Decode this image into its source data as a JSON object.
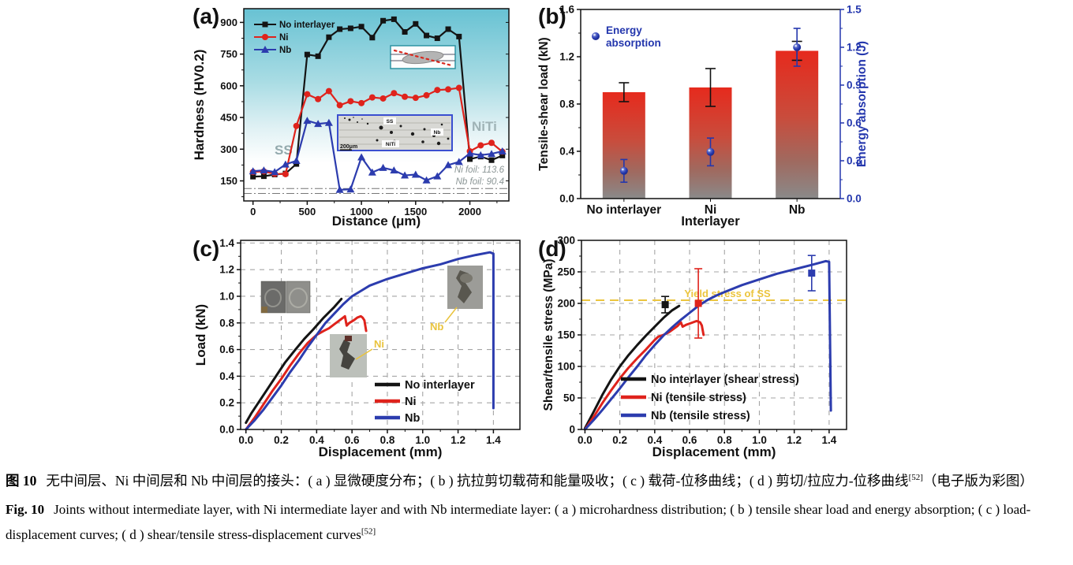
{
  "caption": {
    "zh": {
      "label": "图 10",
      "text": "无中间层、Ni 中间层和 Nb 中间层的接头：( a ) 显微硬度分布；( b ) 抗拉剪切载荷和能量吸收；( c ) 载荷-位移曲线；( d ) 剪切/拉应力-位移曲线",
      "sup": "[52]",
      "suffix": "（电子版为彩图）"
    },
    "en": {
      "label": "Fig. 10",
      "text": "Joints without intermediate layer, with Ni intermediate layer and with Nb intermediate layer: ( a ) microhardness distribution; ( b ) tensile shear load and energy absorption; ( c ) load-displacement curves; ( d ) shear/tensile stress-displacement curves",
      "sup": "[52]"
    }
  },
  "chart_data": [
    {
      "id": "a",
      "type": "line",
      "panel_label": "(a)",
      "xlabel": "Distance (μm)",
      "ylabel": "Hardness (HV0.2)",
      "xlim": [
        -85,
        2360
      ],
      "ylim": [
        55,
        965
      ],
      "xticks": [
        0,
        500,
        1000,
        1500,
        2000
      ],
      "yticks": [
        150,
        300,
        450,
        600,
        750,
        900
      ],
      "background_gradient": [
        "#68c2d3",
        "#a9dce4",
        "#e0f1f4",
        "#ffffff"
      ],
      "x_um": [
        0,
        100,
        200,
        300,
        400,
        500,
        600,
        700,
        800,
        900,
        1000,
        1100,
        1200,
        1300,
        1400,
        1500,
        1600,
        1700,
        1800,
        1900,
        2000,
        2100,
        2200,
        2300
      ],
      "series": [
        {
          "name": "No interlayer",
          "color": "#141414",
          "marker": "square",
          "values": [
            170,
            172,
            180,
            185,
            230,
            748,
            740,
            830,
            868,
            872,
            880,
            828,
            908,
            915,
            855,
            893,
            838,
            825,
            868,
            833,
            253,
            265,
            248,
            270
          ]
        },
        {
          "name": "Ni",
          "color": "#df231c",
          "marker": "circle",
          "values": [
            192,
            195,
            183,
            182,
            410,
            560,
            537,
            575,
            508,
            527,
            518,
            545,
            540,
            565,
            548,
            543,
            555,
            580,
            583,
            590,
            290,
            318,
            330,
            288
          ]
        },
        {
          "name": "Nb",
          "color": "#2c3cae",
          "marker": "triangle",
          "values": [
            196,
            200,
            192,
            228,
            245,
            435,
            420,
            425,
            108,
            110,
            262,
            190,
            212,
            200,
            176,
            180,
            153,
            172,
            225,
            240,
            280,
            272,
            278,
            290
          ]
        }
      ],
      "region_labels": [
        {
          "text": "SS"
        },
        {
          "text": "NiTi"
        }
      ],
      "ref_lines": [
        {
          "label": "Ni foil: 113.6",
          "value": 113.6
        },
        {
          "label": "Nb foil: 90.4",
          "value": 90.4
        }
      ],
      "insets": [
        {
          "kind": "weld-schematic"
        },
        {
          "kind": "micrograph",
          "labels": [
            "SS",
            "Nb",
            "NiTi",
            "200μm"
          ]
        }
      ]
    },
    {
      "id": "b",
      "type": "bar",
      "panel_label": "(b)",
      "categories": [
        "No interlayer",
        "Ni",
        "Nb"
      ],
      "xlabel": "Interlayer",
      "ylabel_left": "Tensile-shear load (kN)",
      "ylabel_right": "Energy absorption (J)",
      "ylim_left": [
        0,
        1.6
      ],
      "yticks_left": [
        0.0,
        0.4,
        0.8,
        1.2,
        1.6
      ],
      "ylim_right": [
        0,
        1.5
      ],
      "yticks_right": [
        0.0,
        0.3,
        0.6,
        0.9,
        1.2,
        1.5
      ],
      "bar_gradient": [
        "#e62a1d",
        "#c94c3c",
        "#9f6a60",
        "#8a8a8a"
      ],
      "bars": {
        "name": "Tensile-shear load",
        "values": [
          0.9,
          0.94,
          1.25
        ],
        "errors": [
          0.08,
          0.16,
          0.08
        ]
      },
      "points": {
        "name": "Energy absorption",
        "color": "#2336ad",
        "values": [
          0.22,
          0.37,
          1.2
        ],
        "errors": [
          0.09,
          0.11,
          0.15
        ]
      },
      "legend_label": "Energy absorption"
    },
    {
      "id": "c",
      "type": "line",
      "panel_label": "(c)",
      "xlabel": "Displacement (mm)",
      "ylabel": "Load (kN)",
      "xlim": [
        -0.03,
        1.55
      ],
      "ylim": [
        0,
        1.42
      ],
      "xticks": [
        0.0,
        0.2,
        0.4,
        0.6,
        0.8,
        1.0,
        1.2,
        1.4
      ],
      "yticks": [
        0.0,
        0.2,
        0.4,
        0.6,
        0.8,
        1.0,
        1.2,
        1.4
      ],
      "grid": true,
      "series": [
        {
          "name": "No interlayer",
          "color": "#141414",
          "points": [
            [
              0,
              0.05
            ],
            [
              0.03,
              0.12
            ],
            [
              0.07,
              0.2
            ],
            [
              0.12,
              0.3
            ],
            [
              0.17,
              0.4
            ],
            [
              0.22,
              0.5
            ],
            [
              0.28,
              0.6
            ],
            [
              0.33,
              0.68
            ],
            [
              0.38,
              0.75
            ],
            [
              0.44,
              0.84
            ],
            [
              0.5,
              0.92
            ],
            [
              0.54,
              0.98
            ]
          ]
        },
        {
          "name": "Ni",
          "color": "#df231c",
          "points": [
            [
              0,
              0
            ],
            [
              0.05,
              0.09
            ],
            [
              0.1,
              0.19
            ],
            [
              0.15,
              0.29
            ],
            [
              0.2,
              0.38
            ],
            [
              0.25,
              0.48
            ],
            [
              0.3,
              0.57
            ],
            [
              0.35,
              0.65
            ],
            [
              0.4,
              0.71
            ],
            [
              0.44,
              0.74
            ],
            [
              0.47,
              0.76
            ],
            [
              0.5,
              0.79
            ],
            [
              0.53,
              0.82
            ],
            [
              0.55,
              0.84
            ],
            [
              0.56,
              0.85
            ],
            [
              0.57,
              0.78
            ],
            [
              0.585,
              0.8
            ],
            [
              0.61,
              0.82
            ],
            [
              0.63,
              0.84
            ],
            [
              0.65,
              0.85
            ],
            [
              0.66,
              0.84
            ],
            [
              0.67,
              0.82
            ],
            [
              0.68,
              0.74
            ]
          ]
        },
        {
          "name": "Nb",
          "color": "#2c3cae",
          "points": [
            [
              0,
              0
            ],
            [
              0.05,
              0.07
            ],
            [
              0.1,
              0.15
            ],
            [
              0.15,
              0.24
            ],
            [
              0.2,
              0.33
            ],
            [
              0.25,
              0.43
            ],
            [
              0.3,
              0.52
            ],
            [
              0.35,
              0.62
            ],
            [
              0.4,
              0.71
            ],
            [
              0.45,
              0.8
            ],
            [
              0.5,
              0.87
            ],
            [
              0.55,
              0.94
            ],
            [
              0.6,
              1.0
            ],
            [
              0.65,
              1.04
            ],
            [
              0.7,
              1.08
            ],
            [
              0.8,
              1.13
            ],
            [
              0.9,
              1.17
            ],
            [
              1.0,
              1.21
            ],
            [
              1.1,
              1.24
            ],
            [
              1.2,
              1.28
            ],
            [
              1.3,
              1.31
            ],
            [
              1.38,
              1.33
            ],
            [
              1.4,
              1.32
            ],
            [
              1.4,
              0.16
            ]
          ]
        }
      ],
      "legend": [
        "No interlayer",
        "Ni",
        "Nb"
      ],
      "insets": [
        {
          "kind": "fracture-photos"
        },
        {
          "kind": "photo",
          "label": "Ni"
        },
        {
          "kind": "photo",
          "label": "Nb"
        }
      ]
    },
    {
      "id": "d",
      "type": "line",
      "panel_label": "(d)",
      "xlabel": "Displacement (mm)",
      "ylabel": "Shear/tensile stress (MPa)",
      "xlim": [
        -0.02,
        1.5
      ],
      "ylim": [
        0,
        300
      ],
      "xticks": [
        0.0,
        0.2,
        0.4,
        0.6,
        0.8,
        1.0,
        1.2,
        1.4
      ],
      "yticks": [
        0,
        50,
        100,
        150,
        200,
        250,
        300
      ],
      "grid": true,
      "yield_line": {
        "value": 205,
        "label": "Yield stress of SS",
        "color": "#ecc53e"
      },
      "series": [
        {
          "name": "No interlayer (shear stress)",
          "color": "#141414",
          "points": [
            [
              0,
              2
            ],
            [
              0.05,
              28
            ],
            [
              0.1,
              55
            ],
            [
              0.15,
              79
            ],
            [
              0.2,
              100
            ],
            [
              0.25,
              118
            ],
            [
              0.3,
              134
            ],
            [
              0.35,
              149
            ],
            [
              0.4,
              163
            ],
            [
              0.45,
              177
            ],
            [
              0.5,
              189
            ],
            [
              0.54,
              196
            ]
          ]
        },
        {
          "name": "Ni (tensile stress)",
          "color": "#df231c",
          "points": [
            [
              0,
              0
            ],
            [
              0.05,
              20
            ],
            [
              0.1,
              42
            ],
            [
              0.15,
              62
            ],
            [
              0.2,
              81
            ],
            [
              0.25,
              98
            ],
            [
              0.3,
              113
            ],
            [
              0.35,
              127
            ],
            [
              0.4,
              142
            ],
            [
              0.42,
              147
            ],
            [
              0.45,
              150
            ],
            [
              0.48,
              154
            ],
            [
              0.5,
              158
            ],
            [
              0.53,
              164
            ],
            [
              0.55,
              170
            ],
            [
              0.56,
              163
            ],
            [
              0.58,
              166
            ],
            [
              0.6,
              168
            ],
            [
              0.62,
              170
            ],
            [
              0.64,
              172
            ],
            [
              0.66,
              170
            ],
            [
              0.67,
              165
            ],
            [
              0.68,
              150
            ]
          ]
        },
        {
          "name": "Nb (tensile stress)",
          "color": "#2c3cae",
          "points": [
            [
              0,
              0
            ],
            [
              0.05,
              15
            ],
            [
              0.1,
              31
            ],
            [
              0.15,
              48
            ],
            [
              0.2,
              65
            ],
            [
              0.25,
              83
            ],
            [
              0.3,
              100
            ],
            [
              0.35,
              118
            ],
            [
              0.4,
              134
            ],
            [
              0.45,
              149
            ],
            [
              0.5,
              162
            ],
            [
              0.55,
              174
            ],
            [
              0.6,
              185
            ],
            [
              0.65,
              196
            ],
            [
              0.7,
              205
            ],
            [
              0.75,
              212
            ],
            [
              0.8,
              218
            ],
            [
              0.9,
              229
            ],
            [
              1.0,
              238
            ],
            [
              1.1,
              247
            ],
            [
              1.2,
              254
            ],
            [
              1.3,
              261
            ],
            [
              1.38,
              267
            ],
            [
              1.4,
              266
            ],
            [
              1.41,
              30
            ]
          ]
        }
      ],
      "data_points": [
        {
          "x": 0.46,
          "y": 198,
          "err": 13,
          "color": "#141414"
        },
        {
          "x": 0.65,
          "y": 200,
          "err": 55,
          "color": "#df231c"
        },
        {
          "x": 1.3,
          "y": 248,
          "err": 28,
          "color": "#2c3cae"
        }
      ],
      "legend": [
        "No interlayer (shear stress)",
        "Ni (tensile stress)",
        "Nb (tensile stress)"
      ]
    }
  ]
}
